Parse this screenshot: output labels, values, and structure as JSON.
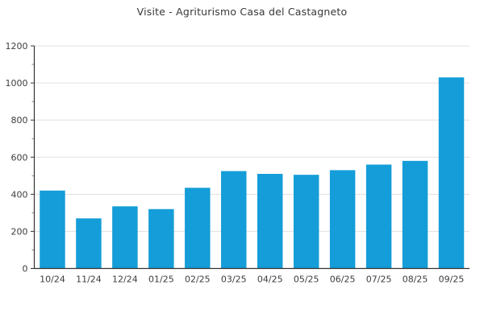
{
  "chart_data": {
    "type": "bar",
    "title": "Visite - Agriturismo Casa del Castagneto",
    "xlabel": "",
    "ylabel": "",
    "categories": [
      "10/24",
      "11/24",
      "12/24",
      "01/25",
      "02/25",
      "03/25",
      "04/25",
      "05/25",
      "06/25",
      "07/25",
      "08/25",
      "09/25"
    ],
    "values": [
      420,
      270,
      335,
      320,
      435,
      525,
      510,
      505,
      530,
      560,
      580,
      1030
    ],
    "ylim": [
      0,
      1200
    ],
    "yticks": [
      0,
      200,
      400,
      600,
      800,
      1000,
      1200
    ],
    "minor_ytick_step": 100,
    "grid": "horizontal-major",
    "legend": "none"
  },
  "colors": {
    "bar": "#149dd8",
    "grid": "#e0e0e0",
    "axis": "#333333",
    "minor_tick": "#666666",
    "tick_label": "#3c3c3c",
    "title": "#383838",
    "background": "#ffffff"
  }
}
